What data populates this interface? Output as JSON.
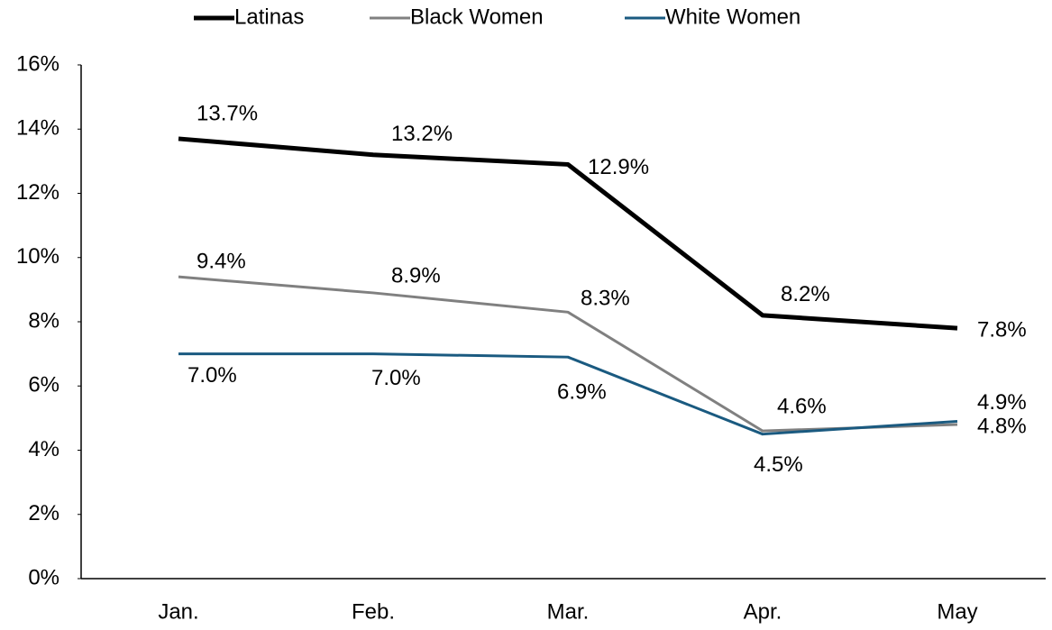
{
  "chart_data": {
    "type": "line",
    "categories": [
      "Jan.",
      "Feb.",
      "Mar.",
      "Apr.",
      "May"
    ],
    "series": [
      {
        "name": "Latinas",
        "color": "#000000",
        "values": [
          13.7,
          13.2,
          12.9,
          8.2,
          7.8
        ],
        "value_labels": [
          "13.7%",
          "13.2%",
          "12.9%",
          "8.2%",
          "7.8%"
        ]
      },
      {
        "name": "Black Women",
        "color": "#808080",
        "values": [
          9.4,
          8.9,
          8.3,
          4.6,
          4.8
        ],
        "value_labels": [
          "9.4%",
          "8.9%",
          "8.3%",
          "4.6%",
          "4.8%"
        ]
      },
      {
        "name": "White Women",
        "color": "#1a5a80",
        "values": [
          7.0,
          7.0,
          6.9,
          4.5,
          4.9
        ],
        "value_labels": [
          "7.0%",
          "7.0%",
          "6.9%",
          "4.5%",
          "4.9%"
        ]
      }
    ],
    "ylim": [
      0,
      16
    ],
    "yticks": [
      {
        "value": 0,
        "label": "0%"
      },
      {
        "value": 2,
        "label": "2%"
      },
      {
        "value": 4,
        "label": "4%"
      },
      {
        "value": 6,
        "label": "6%"
      },
      {
        "value": 8,
        "label": "8%"
      },
      {
        "value": 10,
        "label": "10%"
      },
      {
        "value": 12,
        "label": "12%"
      },
      {
        "value": 14,
        "label": "14%"
      },
      {
        "value": 16,
        "label": "16%"
      }
    ],
    "legend": "top",
    "grid": false
  }
}
